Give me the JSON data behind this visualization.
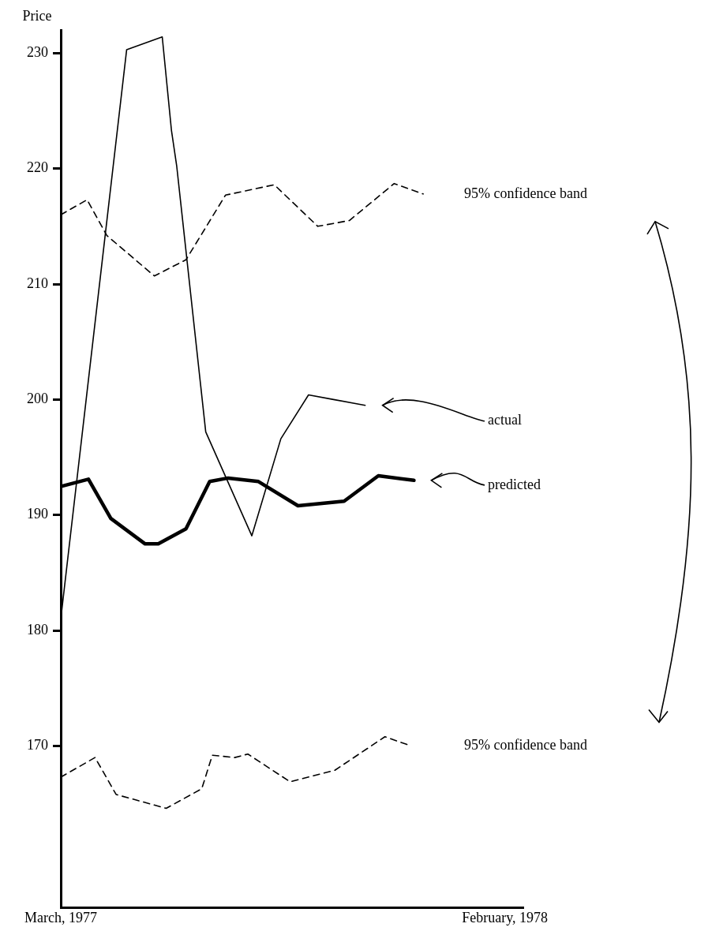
{
  "chart_data": {
    "type": "line",
    "ylabel": "Price",
    "xlim": [
      "1977-03-01",
      "1978-02-15"
    ],
    "ylim": [
      156,
      232
    ],
    "xticks": [
      {
        "value": "1977-03",
        "label": "March, 1977"
      },
      {
        "value": "1978-02",
        "label": "February, 1978"
      }
    ],
    "yticks": [
      170,
      180,
      190,
      200,
      210,
      220,
      230
    ],
    "grid": false,
    "marker": "none",
    "series": [
      {
        "name": "95% confidence band",
        "color": "#000000",
        "line_style": "dashed",
        "x": [
          "1977-03-01",
          "1977-03-21",
          "1977-04-05",
          "1977-05-11",
          "1977-06-04",
          "1977-07-04",
          "1977-08-10",
          "1977-09-12",
          "1977-10-06",
          "1977-11-09",
          "1977-12-01"
        ],
        "values": [
          216.0,
          217.3,
          214.2,
          210.7,
          212.1,
          217.7,
          218.6,
          215.0,
          215.5,
          218.7,
          217.8
        ]
      },
      {
        "name": "actual",
        "color": "#000000",
        "line_style": "solid",
        "x": [
          "1977-03-01",
          "1977-04-20",
          "1977-05-17",
          "1977-05-24",
          "1977-05-28",
          "1977-06-19",
          "1977-07-24",
          "1977-08-15",
          "1977-09-05",
          "1977-09-24",
          "1977-10-18"
        ],
        "values": [
          181,
          230.3,
          231.4,
          223.3,
          220.2,
          197.2,
          188.2,
          196.6,
          200.4,
          200.0,
          199.5
        ]
      },
      {
        "name": "predicted",
        "color": "#000000",
        "line_style": "solid",
        "x": [
          "1977-03-02",
          "1977-03-22",
          "1977-04-08",
          "1977-05-04",
          "1977-05-14",
          "1977-06-04",
          "1977-06-22",
          "1977-07-06",
          "1977-07-29",
          "1977-08-28",
          "1977-10-02",
          "1977-10-28",
          "1977-11-24"
        ],
        "values": [
          192.5,
          193.1,
          189.7,
          187.5,
          187.5,
          188.8,
          192.9,
          193.2,
          192.9,
          190.8,
          191.2,
          193.4,
          193.0
        ]
      },
      {
        "name": "95% confidence band",
        "color": "#000000",
        "line_style": "dashed",
        "x": [
          "1977-03-01",
          "1977-03-27",
          "1977-04-12",
          "1977-05-20",
          "1977-06-16",
          "1977-06-24",
          "1977-07-11",
          "1977-07-21",
          "1977-08-22",
          "1977-09-25",
          "1977-11-02",
          "1977-11-22"
        ],
        "values": [
          167.3,
          169.0,
          165.8,
          164.6,
          166.3,
          169.2,
          169.0,
          169.3,
          166.9,
          167.9,
          170.8,
          170.0
        ]
      }
    ]
  }
}
